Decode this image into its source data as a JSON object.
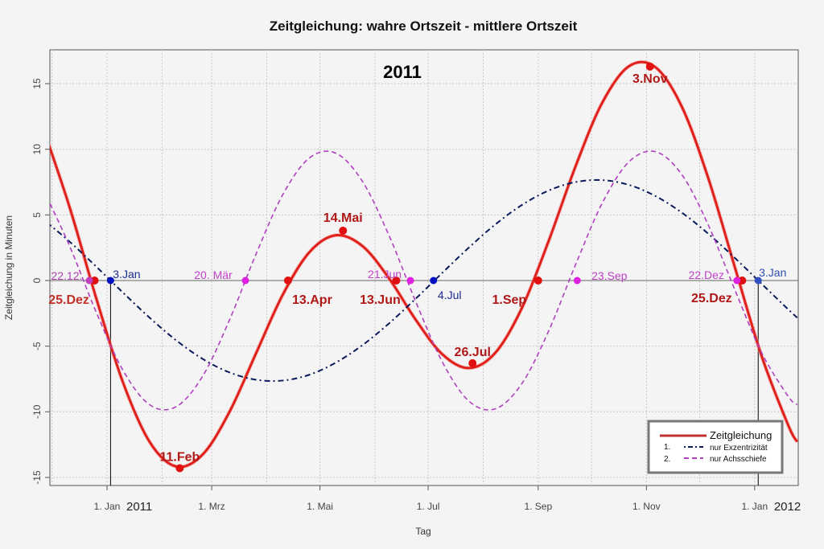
{
  "chart_data": {
    "type": "line",
    "title": "Zeitgleichung: wahre Ortszeit - mittlere Ortszeit",
    "year_label": "2011",
    "xlabel": "Tag",
    "ylabel": "Zeitgleichung in Minuten",
    "ylim": [
      -15.5,
      17.5
    ],
    "xlim": [
      "2010-11-29",
      "2012-01-25"
    ],
    "grid": true,
    "yticks": [
      -15,
      -10,
      -5,
      0,
      5,
      10,
      15
    ],
    "xticks": [
      {
        "date": "2011-01-01",
        "label": "1. Jan"
      },
      {
        "date": "2011-03-01",
        "label": "1. Mrz"
      },
      {
        "date": "2011-05-01",
        "label": "1. Mai"
      },
      {
        "date": "2011-07-01",
        "label": "1. Jul"
      },
      {
        "date": "2011-09-01",
        "label": "1. Sep"
      },
      {
        "date": "2011-11-01",
        "label": "1. Nov"
      },
      {
        "date": "2012-01-01",
        "label": "1. Jan"
      }
    ],
    "year_ticks": [
      "2011",
      "2012"
    ],
    "x": [
      "2010-11-26",
      "2010-12-11",
      "2010-12-26",
      "2011-01-10",
      "2011-01-25",
      "2011-02-09",
      "2011-02-24",
      "2011-03-11",
      "2011-03-26",
      "2011-04-10",
      "2011-04-25",
      "2011-05-10",
      "2011-05-25",
      "2011-06-09",
      "2011-06-24",
      "2011-07-09",
      "2011-07-24",
      "2011-08-08",
      "2011-08-23",
      "2011-09-07",
      "2011-09-22",
      "2011-10-07",
      "2011-10-22",
      "2011-11-06",
      "2011-11-21",
      "2011-12-06",
      "2011-12-21",
      "2012-01-05",
      "2012-01-20",
      "2012-01-25"
    ],
    "series": [
      {
        "name": "Zeitgleichung",
        "color": "#e0201a",
        "style": "solid",
        "values": [
          11.62,
          5.55,
          -1.39,
          -7.76,
          -12.29,
          -14.17,
          -13.24,
          -10.01,
          -5.54,
          -1.09,
          2.15,
          3.45,
          2.62,
          0.15,
          -2.99,
          -5.62,
          -6.67,
          -5.48,
          -2.04,
          3.05,
          8.68,
          13.52,
          16.31,
          16.26,
          13.23,
          7.74,
          0.94,
          -5.78,
          -11.05,
          -12.29
        ]
      },
      {
        "name": "nur Exzentrizität",
        "number": "1.",
        "color": "#0a1a5a",
        "style": "dashdot",
        "values": [
          4.66,
          2.95,
          1.05,
          -0.92,
          -2.83,
          -4.56,
          -5.98,
          -7.0,
          -7.56,
          -7.62,
          -7.18,
          -6.25,
          -4.92,
          -3.26,
          -1.38,
          0.59,
          2.52,
          4.29,
          5.77,
          6.86,
          7.5,
          7.65,
          7.29,
          6.44,
          5.17,
          3.55,
          1.7,
          -0.26,
          -2.21,
          -2.83
        ]
      },
      {
        "name": "nur Achsschiefe",
        "number": "2.",
        "color": "#b040c0",
        "style": "dashed",
        "values": [
          6.96,
          2.6,
          -2.44,
          -6.84,
          -9.46,
          -9.61,
          -7.26,
          -3.01,
          2.02,
          6.53,
          9.33,
          9.7,
          7.54,
          3.41,
          -1.61,
          -6.21,
          -9.19,
          -9.77,
          -7.81,
          -3.81,
          1.18,
          5.87,
          9.02,
          9.82,
          8.06,
          4.19,
          -0.76,
          -5.52,
          -8.84,
          -9.46
        ]
      }
    ],
    "annotations": [
      {
        "date": "2010-12-25",
        "y": 0,
        "label": "25.Dez",
        "color": "#e01010",
        "text_color": "#c0302a"
      },
      {
        "date": "2011-02-11",
        "y": -14.3,
        "label": "11.Feb",
        "color": "#e01010",
        "text_color": "#b01818"
      },
      {
        "date": "2011-04-13",
        "y": 0,
        "label": "13.Apr",
        "color": "#e01010",
        "text_color": "#b01818"
      },
      {
        "date": "2011-05-14",
        "y": 3.8,
        "label": "14.Mai",
        "color": "#e01010",
        "text_color": "#b01818"
      },
      {
        "date": "2011-06-13",
        "y": 0,
        "label": "13.Jun",
        "color": "#e01010",
        "text_color": "#b01818"
      },
      {
        "date": "2011-07-26",
        "y": -6.3,
        "label": "26.Jul",
        "color": "#e01010",
        "text_color": "#b01818"
      },
      {
        "date": "2011-09-01",
        "y": 0,
        "label": "1.Sep",
        "color": "#e01010",
        "text_color": "#b01818"
      },
      {
        "date": "2011-11-03",
        "y": 16.3,
        "label": "3.Nov",
        "color": "#e01010",
        "text_color": "#b01818"
      },
      {
        "date": "2011-12-25",
        "y": 0,
        "label": "25.Dez",
        "color": "#e01010",
        "text_color": "#b01818"
      },
      {
        "date": "2010-12-22",
        "y": 0,
        "label": "22.12.",
        "color": "#c040c0",
        "text_color": "#b040b0"
      },
      {
        "date": "2011-03-20",
        "y": 0,
        "label": "20. Mär",
        "color": "#e020e0",
        "text_color": "#c040c8"
      },
      {
        "date": "2011-06-21",
        "y": 0,
        "label": "21.Jun",
        "color": "#e020e0",
        "text_color": "#c040c8"
      },
      {
        "date": "2011-09-23",
        "y": 0,
        "label": "23.Sep",
        "color": "#e020e0",
        "text_color": "#c040c8"
      },
      {
        "date": "2011-12-22",
        "y": 0,
        "label": "22.Dez",
        "color": "#e020e0",
        "text_color": "#c040c8"
      },
      {
        "date": "2011-01-03",
        "y": 0,
        "label": "3.Jan",
        "color": "#0010c0",
        "text_color": "#1a2a90"
      },
      {
        "date": "2011-07-04",
        "y": 0,
        "label": "4.Jul",
        "color": "#0010c0",
        "text_color": "#1a2a90"
      },
      {
        "date": "2012-01-03",
        "y": 0,
        "label": "3.Jan",
        "color": "#3050c0",
        "text_color": "#3050b0"
      }
    ],
    "legend": {
      "placement": "bottom-right"
    }
  }
}
